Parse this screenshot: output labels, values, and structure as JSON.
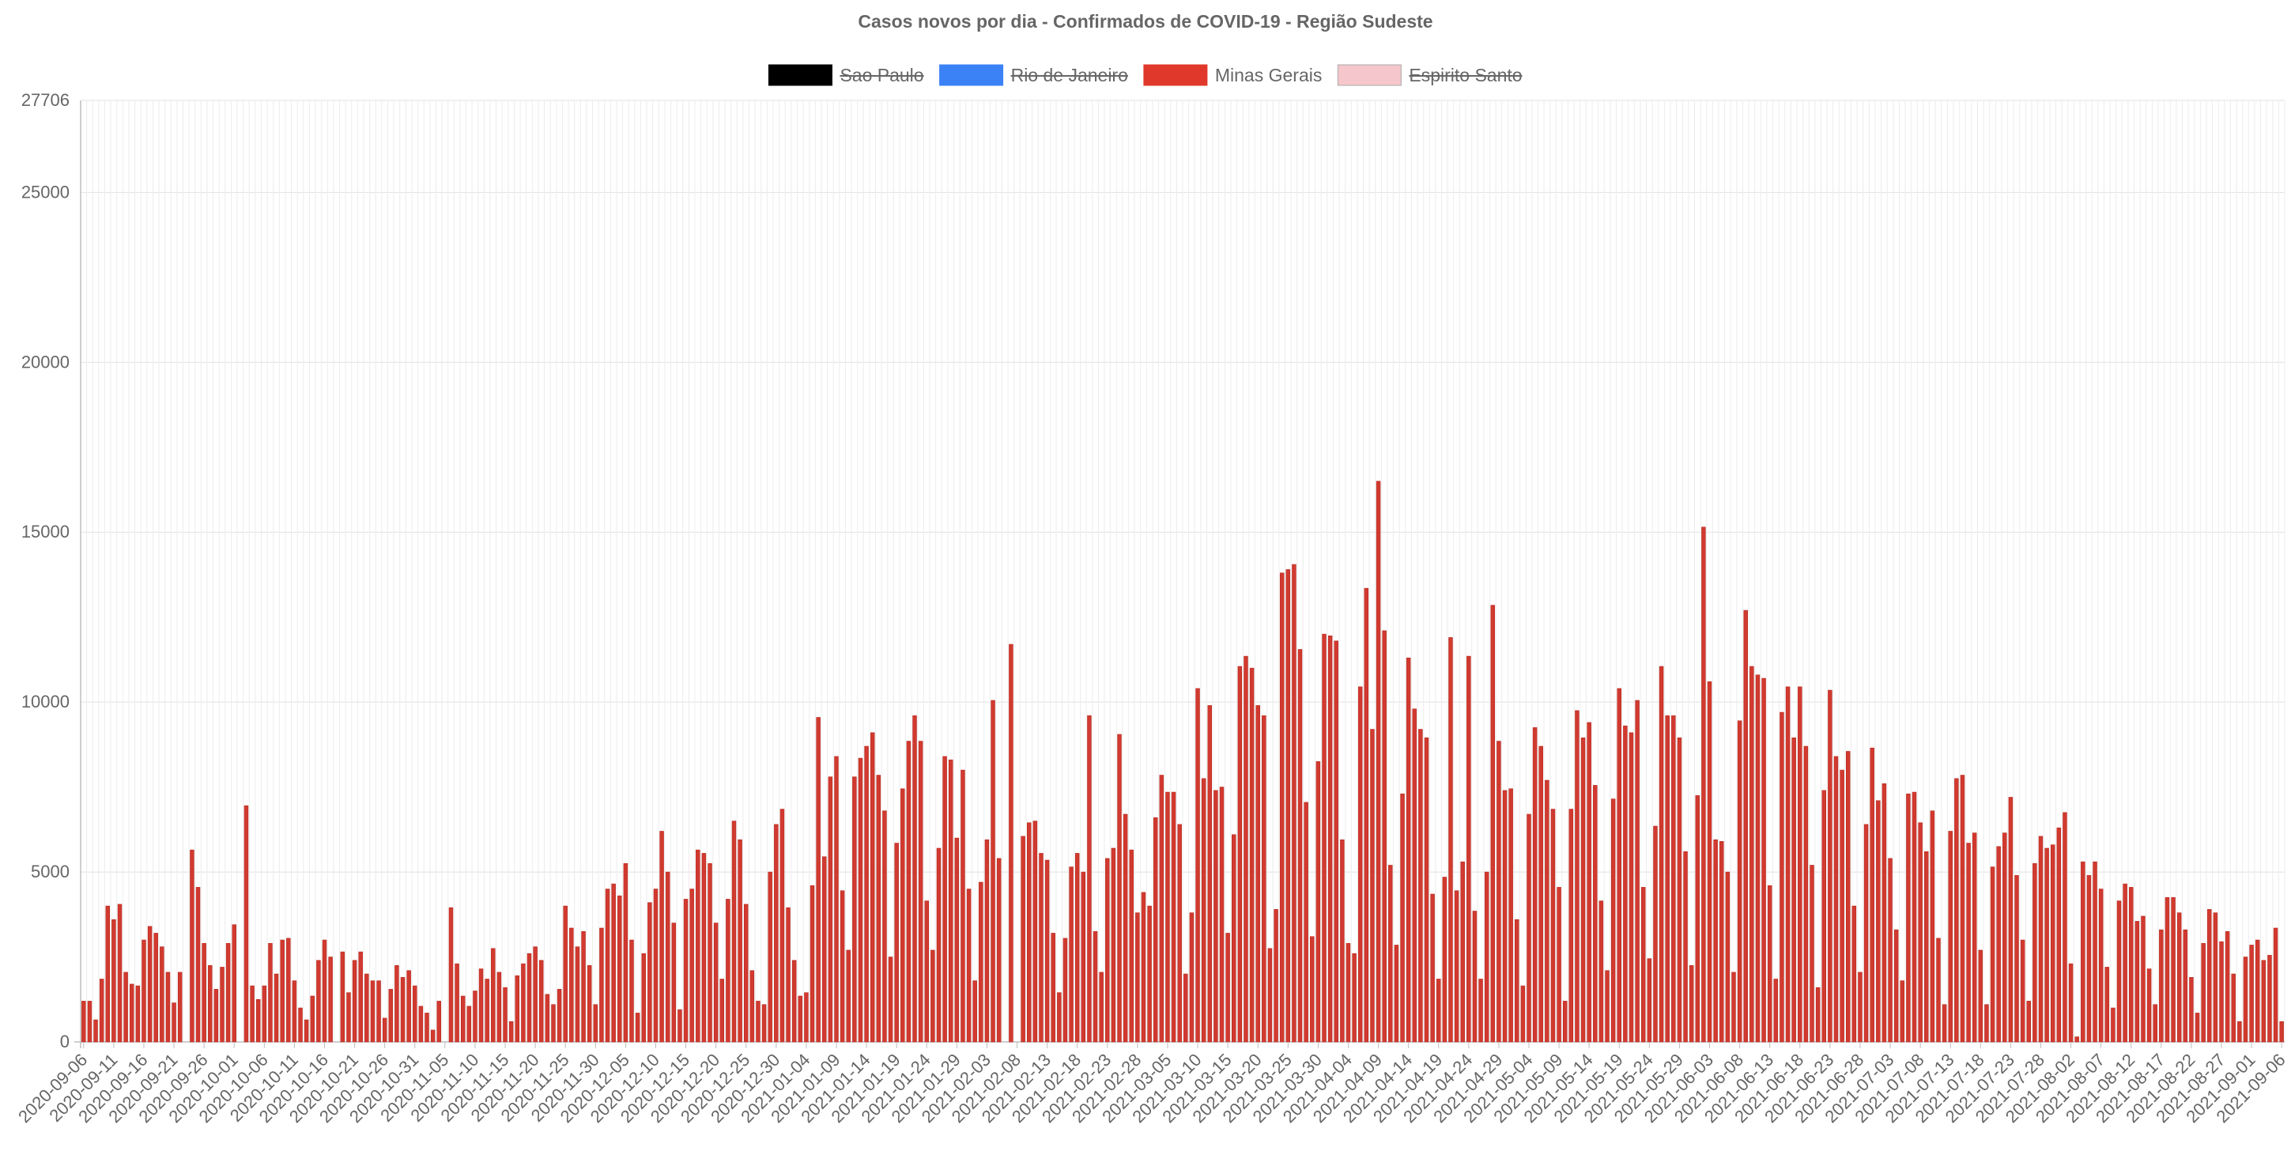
{
  "chart_data": {
    "type": "bar",
    "title": "Casos novos por dia - Confirmados de COVID-19 - Região Sudeste",
    "legend_position": "top",
    "grid": true,
    "legend": [
      {
        "name": "Sao Paulo",
        "color": "#000000",
        "hidden": true
      },
      {
        "name": "Rio de Janeiro",
        "color": "#3B82F6",
        "hidden": true
      },
      {
        "name": "Minas Gerais",
        "color": "#E0392B",
        "hidden": false
      },
      {
        "name": "Espirito Santo",
        "color": "#F5C6CB",
        "hidden": true
      }
    ],
    "bar_fill": "#D13A30",
    "bar_stroke": "#B8281E",
    "ylim": [
      0,
      27706
    ],
    "y_ticks": [
      0,
      5000,
      10000,
      15000,
      20000,
      25000,
      27706
    ],
    "x_tick_labels": [
      "2020-09-06",
      "2020-09-11",
      "2020-09-16",
      "2020-09-21",
      "2020-09-26",
      "2020-10-01",
      "2020-10-06",
      "2020-10-11",
      "2020-10-16",
      "2020-10-21",
      "2020-10-26",
      "2020-10-31",
      "2020-11-05",
      "2020-11-10",
      "2020-11-15",
      "2020-11-20",
      "2020-11-25",
      "2020-11-30",
      "2020-12-05",
      "2020-12-10",
      "2020-12-15",
      "2020-12-20",
      "2020-12-25",
      "2020-12-30",
      "2021-01-04",
      "2021-01-09",
      "2021-01-14",
      "2021-01-19",
      "2021-01-24",
      "2021-01-29",
      "2021-02-03",
      "2021-02-08",
      "2021-02-13",
      "2021-02-18",
      "2021-02-23",
      "2021-02-28",
      "2021-03-05",
      "2021-03-10",
      "2021-03-15",
      "2021-03-20",
      "2021-03-25",
      "2021-03-30",
      "2021-04-04",
      "2021-04-09",
      "2021-04-14",
      "2021-04-19",
      "2021-04-24",
      "2021-04-29",
      "2021-05-04",
      "2021-05-09",
      "2021-05-14",
      "2021-05-19",
      "2021-05-24",
      "2021-05-29",
      "2021-06-03",
      "2021-06-08",
      "2021-06-13",
      "2021-06-18",
      "2021-06-23",
      "2021-06-28",
      "2021-07-03",
      "2021-07-08",
      "2021-07-13",
      "2021-07-18",
      "2021-07-23",
      "2021-07-28",
      "2021-08-02",
      "2021-08-07",
      "2021-08-12",
      "2021-08-17",
      "2021-08-22",
      "2021-08-27",
      "2021-09-01",
      "2021-09-06"
    ],
    "series": [
      {
        "name": "Minas Gerais",
        "start_date": "2020-09-06",
        "values": [
          1200,
          1200,
          650,
          1850,
          4000,
          3600,
          4050,
          2050,
          1700,
          1650,
          3000,
          3400,
          3200,
          2800,
          2050,
          1150,
          2050,
          0,
          5650,
          4550,
          2900,
          2250,
          1550,
          2200,
          2900,
          3450,
          0,
          6950,
          1650,
          1250,
          1650,
          2900,
          2000,
          3000,
          3050,
          1800,
          1000,
          650,
          1350,
          2400,
          3000,
          2500,
          0,
          2650,
          1450,
          2400,
          2650,
          2000,
          1800,
          1800,
          700,
          1550,
          2250,
          1900,
          2100,
          1650,
          1050,
          850,
          350,
          1200,
          0,
          3950,
          2300,
          1350,
          1050,
          1500,
          2150,
          1850,
          2750,
          2050,
          1600,
          600,
          1950,
          2300,
          2600,
          2800,
          2400,
          1400,
          1100,
          1550,
          4000,
          3350,
          2800,
          3250,
          2250,
          1100,
          3350,
          4500,
          4650,
          4300,
          5250,
          3000,
          850,
          2600,
          4100,
          4500,
          6200,
          5000,
          3500,
          950,
          4200,
          4500,
          5650,
          5550,
          5250,
          3500,
          1850,
          4200,
          6500,
          5950,
          4050,
          2100,
          1200,
          1100,
          5000,
          6400,
          6850,
          3950,
          2400,
          1350,
          1450,
          4600,
          9550,
          5450,
          7800,
          8400,
          4450,
          2700,
          7800,
          8350,
          8700,
          9100,
          7850,
          6800,
          2500,
          5850,
          7450,
          8850,
          9600,
          8850,
          4150,
          2700,
          5700,
          8400,
          8300,
          6000,
          8000,
          4500,
          1800,
          4700,
          5950,
          10050,
          5400,
          0,
          11700,
          0,
          6050,
          6450,
          6500,
          5550,
          5350,
          3200,
          1450,
          3050,
          5150,
          5550,
          5000,
          9600,
          3250,
          2050,
          5400,
          5700,
          9050,
          6700,
          5650,
          3800,
          4400,
          4000,
          6600,
          7850,
          7350,
          7350,
          6400,
          2000,
          3800,
          10400,
          7750,
          9900,
          7400,
          7500,
          3200,
          6100,
          11050,
          11350,
          11000,
          9900,
          9600,
          2750,
          3900,
          13800,
          13900,
          14050,
          11550,
          7050,
          3100,
          8250,
          12000,
          11950,
          11800,
          5950,
          2900,
          2600,
          10450,
          13350,
          9200,
          16500,
          12100,
          5200,
          2850,
          7300,
          11300,
          9800,
          9200,
          8950,
          4350,
          1850,
          4850,
          11900,
          4450,
          5300,
          11350,
          3850,
          1850,
          5000,
          12850,
          8850,
          7400,
          7450,
          3600,
          1650,
          6700,
          9250,
          8700,
          7700,
          6850,
          4550,
          1200,
          6850,
          9750,
          8950,
          9400,
          7550,
          4150,
          2100,
          7150,
          10400,
          9300,
          9100,
          10050,
          4550,
          2450,
          6350,
          11050,
          9600,
          9600,
          8950,
          5600,
          2250,
          7250,
          15150,
          10600,
          5950,
          5900,
          5000,
          2050,
          9450,
          12700,
          11050,
          10800,
          10700,
          4600,
          1850,
          9700,
          10450,
          8950,
          10450,
          8700,
          5200,
          1600,
          7400,
          10350,
          8400,
          8000,
          8550,
          4000,
          2050,
          6400,
          8650,
          7100,
          7600,
          5400,
          3300,
          1800,
          7300,
          7350,
          6450,
          5600,
          6800,
          3050,
          1100,
          6200,
          7750,
          7850,
          5850,
          6150,
          2700,
          1100,
          5150,
          5750,
          6150,
          7200,
          4900,
          3000,
          1200,
          5250,
          6050,
          5700,
          5800,
          6300,
          6750,
          2300,
          150,
          5300,
          4900,
          5300,
          4500,
          2200,
          1000,
          4150,
          4650,
          4550,
          3550,
          3700,
          2150,
          1100,
          3300,
          4250,
          4250,
          3800,
          3300,
          1900,
          850,
          2900,
          3900,
          3800,
          2950,
          3250,
          2000,
          600,
          2500,
          2850,
          3000,
          2400,
          2550,
          3350,
          600
        ]
      }
    ]
  }
}
